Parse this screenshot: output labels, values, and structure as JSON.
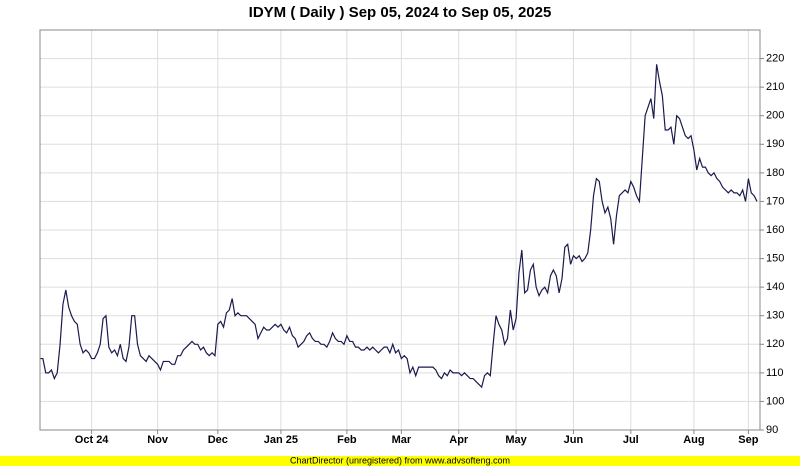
{
  "chart_data": {
    "type": "line",
    "title": "IDYM ( Daily ) Sep 05, 2024 to Sep 05, 2025",
    "footer": "ChartDirector (unregistered) from www.advsofteng.com",
    "color": "#1a1a4e",
    "grid": true,
    "ylim": [
      90,
      230
    ],
    "yticks": [
      90,
      100,
      110,
      120,
      130,
      140,
      150,
      160,
      170,
      180,
      190,
      200,
      210,
      220
    ],
    "categories": [
      null,
      null,
      null,
      null,
      null,
      null,
      null,
      null,
      null,
      null,
      null,
      null,
      null,
      null,
      null,
      null,
      null,
      null,
      "Oct 24",
      null,
      null,
      null,
      null,
      null,
      null,
      null,
      null,
      null,
      null,
      null,
      null,
      null,
      null,
      null,
      null,
      null,
      null,
      null,
      null,
      null,
      null,
      "Nov",
      null,
      null,
      null,
      null,
      null,
      null,
      null,
      null,
      null,
      null,
      null,
      null,
      null,
      null,
      null,
      null,
      null,
      null,
      null,
      null,
      "Dec",
      null,
      null,
      null,
      null,
      null,
      null,
      null,
      null,
      null,
      null,
      null,
      null,
      null,
      null,
      null,
      null,
      null,
      null,
      null,
      null,
      null,
      "Jan 25",
      null,
      null,
      null,
      null,
      null,
      null,
      null,
      null,
      null,
      null,
      null,
      null,
      null,
      null,
      null,
      null,
      null,
      null,
      null,
      null,
      null,
      null,
      "Feb",
      null,
      null,
      null,
      null,
      null,
      null,
      null,
      null,
      null,
      null,
      null,
      null,
      null,
      null,
      null,
      null,
      null,
      null,
      "Mar",
      null,
      null,
      null,
      null,
      null,
      null,
      null,
      null,
      null,
      null,
      null,
      null,
      null,
      null,
      null,
      null,
      null,
      null,
      null,
      "Apr",
      null,
      null,
      null,
      null,
      null,
      null,
      null,
      null,
      null,
      null,
      null,
      null,
      null,
      null,
      null,
      null,
      null,
      null,
      null,
      "May",
      null,
      null,
      null,
      null,
      null,
      null,
      null,
      null,
      null,
      null,
      null,
      null,
      null,
      null,
      null,
      null,
      null,
      null,
      null,
      "Jun",
      null,
      null,
      null,
      null,
      null,
      null,
      null,
      null,
      null,
      null,
      null,
      null,
      null,
      null,
      null,
      null,
      null,
      null,
      null,
      "Jul",
      null,
      null,
      null,
      null,
      null,
      null,
      null,
      null,
      null,
      null,
      null,
      null,
      null,
      null,
      null,
      null,
      null,
      null,
      null,
      null,
      null,
      "Aug",
      null,
      null,
      null,
      null,
      null,
      null,
      null,
      null,
      null,
      null,
      null,
      null,
      null,
      null,
      null,
      null,
      null,
      null,
      "Sep",
      null,
      null,
      null
    ],
    "values": [
      115,
      115,
      110,
      110,
      111,
      108,
      110,
      120,
      134,
      139,
      133,
      130,
      128,
      127,
      120,
      117,
      118,
      117,
      115,
      115,
      117,
      120,
      129,
      130,
      119,
      117,
      118,
      116,
      120,
      115,
      114,
      119,
      130,
      130,
      120,
      116,
      115,
      114,
      116,
      115,
      114,
      113,
      111,
      114,
      114,
      114,
      113,
      113,
      116,
      116,
      118,
      119,
      120,
      121,
      120,
      120,
      118,
      119,
      117,
      116,
      117,
      116,
      127,
      128,
      126,
      131,
      132,
      136,
      130,
      131,
      130,
      130,
      130,
      129,
      128,
      127,
      122,
      124,
      126,
      125,
      125,
      126,
      127,
      126,
      127,
      125,
      124,
      126,
      123,
      122,
      119,
      120,
      121,
      123,
      124,
      122,
      121,
      121,
      120,
      120,
      119,
      121,
      124,
      122,
      121,
      121,
      120,
      123,
      121,
      121,
      119,
      119,
      118,
      118,
      119,
      118,
      119,
      118,
      117,
      118,
      119,
      119,
      117,
      120,
      117,
      118,
      115,
      116,
      115,
      110,
      112,
      109,
      112,
      112,
      112,
      112,
      112,
      112,
      111,
      109,
      108,
      110,
      109,
      111,
      110,
      110,
      110,
      109,
      110,
      109,
      108,
      108,
      107,
      106,
      105,
      109,
      110,
      109,
      120,
      130,
      127,
      125,
      120,
      122,
      132,
      125,
      129,
      145,
      153,
      138,
      139,
      146,
      148,
      140,
      137,
      139,
      140,
      138,
      144,
      146,
      144,
      138,
      143,
      154,
      155,
      148,
      151,
      150,
      151,
      149,
      150,
      152,
      160,
      172,
      178,
      177,
      170,
      166,
      168,
      164,
      155,
      165,
      172,
      173,
      174,
      173,
      177,
      175,
      172,
      170,
      185,
      200,
      203,
      206,
      199,
      218,
      212,
      207,
      195,
      195,
      196,
      190,
      200,
      199,
      196,
      193,
      192,
      193,
      188,
      181,
      185,
      182,
      182,
      180,
      179,
      180,
      178,
      177,
      175,
      174,
      173,
      174,
      173,
      173,
      172,
      174,
      170,
      178,
      173,
      172,
      170
    ]
  }
}
